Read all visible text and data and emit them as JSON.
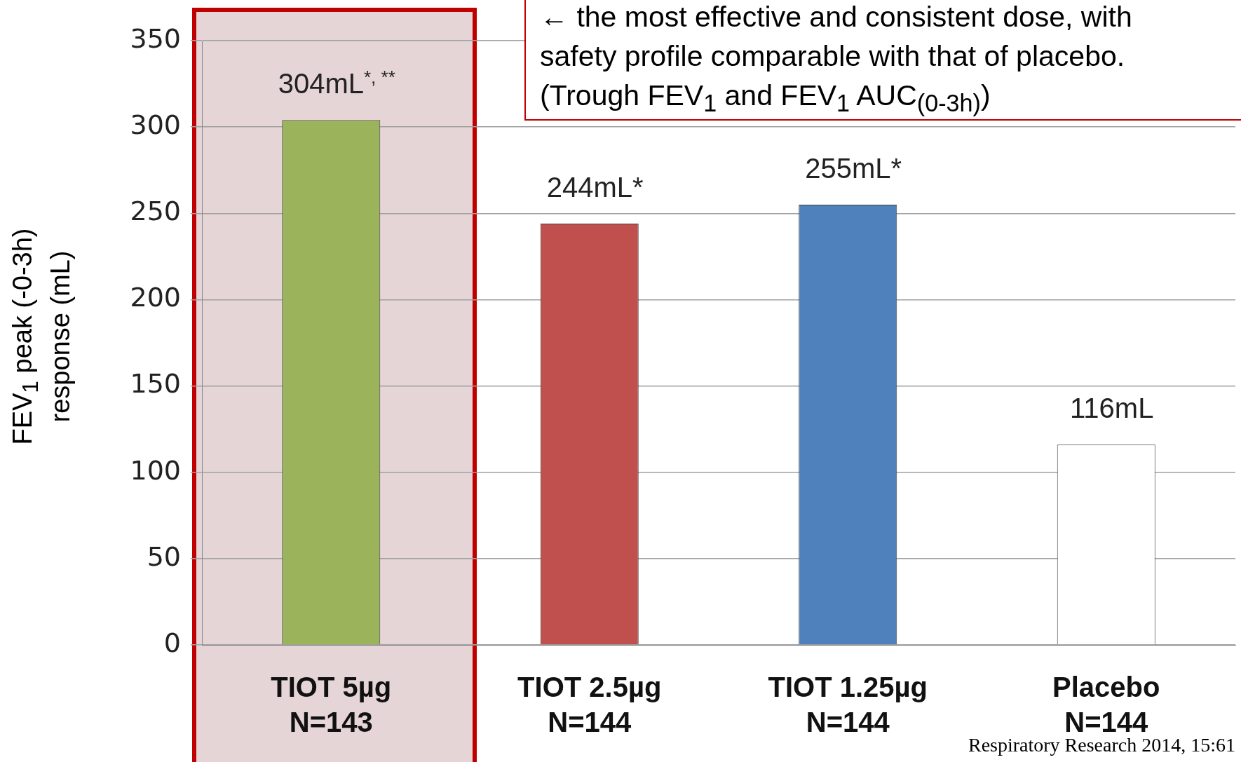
{
  "chart_data": {
    "type": "bar",
    "categories": [
      "TIOT 5µg\nN=143",
      "TIOT 2.5µg\nN=144",
      "TIOT 1.25µg\nN=144",
      "Placebo\nN=144"
    ],
    "values": [
      304,
      244,
      255,
      116
    ],
    "colors": [
      "#9bb35a",
      "#c0504d",
      "#4f81bd",
      "#ffffff"
    ],
    "value_labels": [
      "304mL$^{*, **}$",
      "244mL*",
      "255mL*",
      "116mL"
    ],
    "ylabel": "FEV$_{1}$ peak (-0-3h)\nresponse (mL)",
    "ylim": [
      0,
      350
    ],
    "yticks": [
      0,
      50,
      100,
      150,
      200,
      250,
      300,
      350
    ],
    "grid": "y",
    "annotations": [
      "← the most effective and consistent dose, with safety profile comparable with that of placebo. (Trough FEV$_{1}$ and FEV$_{1}$ AUC$_{(0-3h)}$)",
      "Respiratory Research 2014, 15:61"
    ]
  }
}
